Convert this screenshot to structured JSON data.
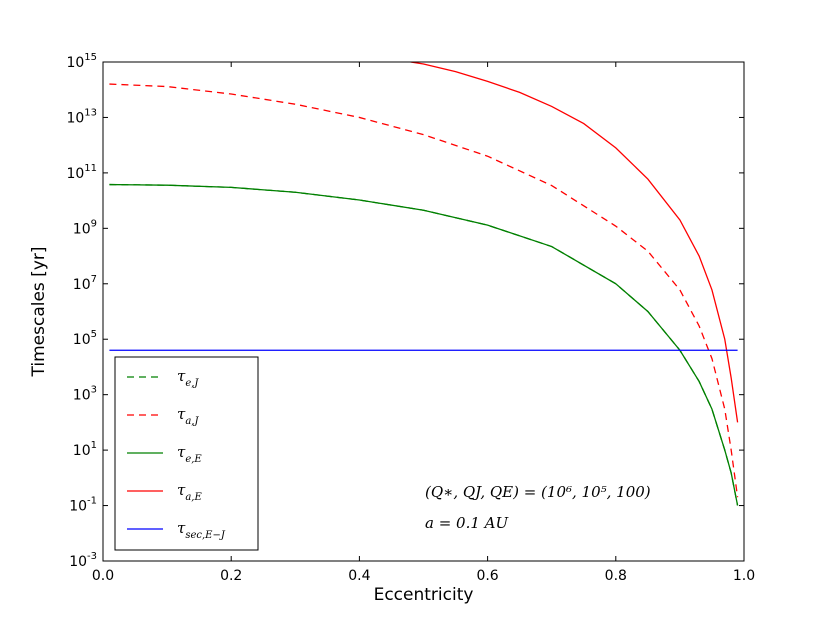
{
  "chart_data": {
    "type": "line",
    "xlabel": "Eccentricity",
    "ylabel": "Timescales [yr]",
    "xlim": [
      0.0,
      1.0
    ],
    "ylim": [
      0.001,
      1000000000000000.0
    ],
    "yscale": "log",
    "x_ticks": [
      "0.0",
      "0.2",
      "0.4",
      "0.6",
      "0.8",
      "1.0"
    ],
    "y_ticks": [
      {
        "base": "10",
        "exp": "-3"
      },
      {
        "base": "10",
        "exp": "-1"
      },
      {
        "base": "10",
        "exp": "1"
      },
      {
        "base": "10",
        "exp": "3"
      },
      {
        "base": "10",
        "exp": "5"
      },
      {
        "base": "10",
        "exp": "7"
      },
      {
        "base": "10",
        "exp": "9"
      },
      {
        "base": "10",
        "exp": "11"
      },
      {
        "base": "10",
        "exp": "13"
      },
      {
        "base": "10",
        "exp": "15"
      }
    ],
    "legend_position": "bottom-left",
    "series": [
      {
        "name": "τ_e,J",
        "label_main": "τ",
        "label_sub": "e,J",
        "color": "#008000",
        "style": "dashed",
        "x": [
          0.01,
          0.1,
          0.2,
          0.3,
          0.4,
          0.5,
          0.6,
          0.7,
          0.8,
          0.85,
          0.9,
          0.93,
          0.95,
          0.97,
          0.98,
          0.99
        ],
        "y": [
          38000000000.0,
          36000000000.0,
          30000000000.0,
          20000000000.0,
          10500000000.0,
          4500000000.0,
          1300000000.0,
          220000000.0,
          10000000.0,
          1000000.0,
          40000.0,
          3000.0,
          300.0,
          10.0,
          1.5,
          0.1
        ]
      },
      {
        "name": "τ_a,J",
        "label_main": "τ",
        "label_sub": "a,J",
        "color": "#ff0000",
        "style": "dashed",
        "x": [
          0.01,
          0.1,
          0.2,
          0.3,
          0.4,
          0.5,
          0.6,
          0.7,
          0.8,
          0.85,
          0.9,
          0.93,
          0.95,
          0.97,
          0.98,
          0.99
        ],
        "y": [
          160000000000000.0,
          130000000000000.0,
          70000000000000.0,
          30000000000000.0,
          10000000000000.0,
          2400000000000.0,
          400000000000.0,
          35000000000.0,
          1200000000.0,
          150000000.0,
          6000000.0,
          300000.0,
          20000.0,
          300.0,
          10.0,
          0.2
        ]
      },
      {
        "name": "τ_e,E",
        "label_main": "τ",
        "label_sub": "e,E",
        "color": "#008000",
        "style": "solid",
        "x": [
          0.01,
          0.1,
          0.2,
          0.3,
          0.4,
          0.5,
          0.6,
          0.7,
          0.8,
          0.85,
          0.9,
          0.93,
          0.95,
          0.97,
          0.98,
          0.99
        ],
        "y": [
          38000000000.0,
          36000000000.0,
          30000000000.0,
          20000000000.0,
          10500000000.0,
          4500000000.0,
          1300000000.0,
          220000000.0,
          10000000.0,
          1000000.0,
          40000.0,
          3000.0,
          300.0,
          10.0,
          1.5,
          0.1
        ]
      },
      {
        "name": "τ_a,E",
        "label_main": "τ",
        "label_sub": "a,E",
        "color": "#ff0000",
        "style": "solid",
        "x": [
          0.48,
          0.5,
          0.55,
          0.6,
          0.65,
          0.7,
          0.75,
          0.8,
          0.85,
          0.9,
          0.93,
          0.95,
          0.97,
          0.98,
          0.99
        ],
        "y": [
          1000000000000000.0,
          850000000000000.0,
          450000000000000.0,
          200000000000000.0,
          80000000000000.0,
          25000000000000.0,
          6000000000000.0,
          800000000000.0,
          60000000000.0,
          2000000000.0,
          100000000.0,
          6000000.0,
          100000.0,
          4000.0,
          100.0
        ]
      },
      {
        "name": "τ_sec,E−J",
        "label_main": "τ",
        "label_sub": "sec,E−J",
        "color": "#0000ff",
        "style": "solid",
        "x": [
          0.01,
          0.99
        ],
        "y": [
          40000.0,
          40000.0
        ]
      }
    ],
    "annotations": [
      {
        "text": "(Q∗, QJ, QE) = (10⁶, 10⁵, 100)"
      },
      {
        "text": "a = 0.1 AU"
      }
    ]
  }
}
